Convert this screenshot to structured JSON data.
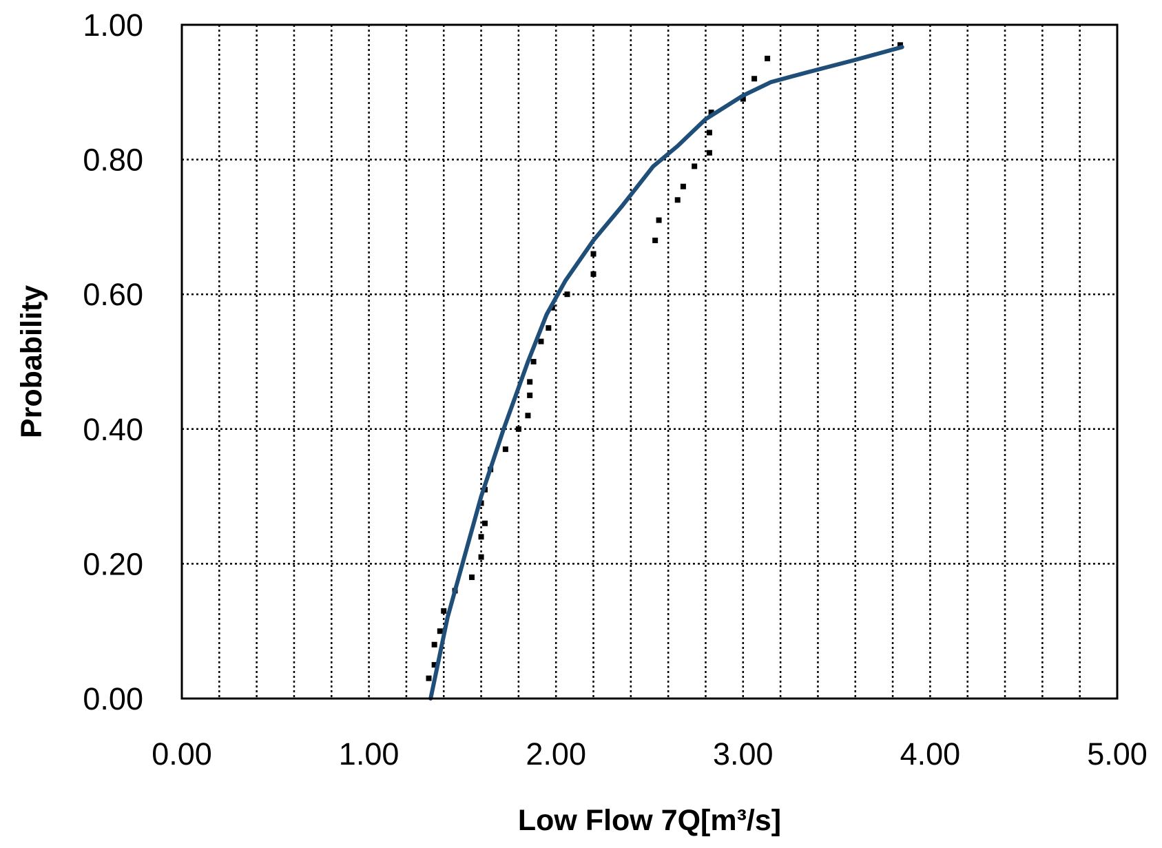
{
  "chart_data": {
    "type": "scatter",
    "title": "",
    "xlabel": "Low Flow 7Q[m³/s]",
    "ylabel": "Probability",
    "xlim": [
      0,
      5
    ],
    "ylim": [
      0,
      1
    ],
    "x_ticks": [
      "0.00",
      "1.00",
      "2.00",
      "3.00",
      "4.00",
      "5.00"
    ],
    "y_ticks": [
      "0.00",
      "0.20",
      "0.40",
      "0.60",
      "0.80",
      "1.00"
    ],
    "grid": true,
    "legend": "none",
    "series": [
      {
        "kind": "scatter",
        "color": "#000000",
        "points": [
          [
            1.32,
            0.03
          ],
          [
            1.35,
            0.05
          ],
          [
            1.35,
            0.08
          ],
          [
            1.38,
            0.1
          ],
          [
            1.4,
            0.13
          ],
          [
            1.46,
            0.16
          ],
          [
            1.55,
            0.18
          ],
          [
            1.6,
            0.21
          ],
          [
            1.6,
            0.24
          ],
          [
            1.62,
            0.26
          ],
          [
            1.6,
            0.29
          ],
          [
            1.62,
            0.31
          ],
          [
            1.65,
            0.34
          ],
          [
            1.73,
            0.37
          ],
          [
            1.8,
            0.4
          ],
          [
            1.85,
            0.42
          ],
          [
            1.86,
            0.45
          ],
          [
            1.86,
            0.47
          ],
          [
            1.88,
            0.5
          ],
          [
            1.92,
            0.53
          ],
          [
            1.96,
            0.55
          ],
          [
            1.98,
            0.58
          ],
          [
            2.06,
            0.6
          ],
          [
            2.2,
            0.63
          ],
          [
            2.2,
            0.66
          ],
          [
            2.53,
            0.68
          ],
          [
            2.55,
            0.71
          ],
          [
            2.65,
            0.74
          ],
          [
            2.68,
            0.76
          ],
          [
            2.74,
            0.79
          ],
          [
            2.82,
            0.81
          ],
          [
            2.82,
            0.84
          ],
          [
            2.83,
            0.87
          ],
          [
            3.0,
            0.89
          ],
          [
            3.06,
            0.92
          ],
          [
            3.13,
            0.95
          ],
          [
            3.84,
            0.97
          ]
        ]
      },
      {
        "kind": "line",
        "color": "#1f4e79",
        "points": [
          [
            1.33,
            0.0
          ],
          [
            1.42,
            0.12
          ],
          [
            1.5,
            0.2
          ],
          [
            1.6,
            0.3
          ],
          [
            1.72,
            0.4
          ],
          [
            1.85,
            0.5
          ],
          [
            1.95,
            0.57
          ],
          [
            2.05,
            0.62
          ],
          [
            2.2,
            0.68
          ],
          [
            2.35,
            0.73
          ],
          [
            2.52,
            0.79
          ],
          [
            2.65,
            0.82
          ],
          [
            2.8,
            0.86
          ],
          [
            3.0,
            0.895
          ],
          [
            3.15,
            0.915
          ],
          [
            3.35,
            0.93
          ],
          [
            3.6,
            0.948
          ],
          [
            3.85,
            0.967
          ]
        ]
      }
    ]
  }
}
